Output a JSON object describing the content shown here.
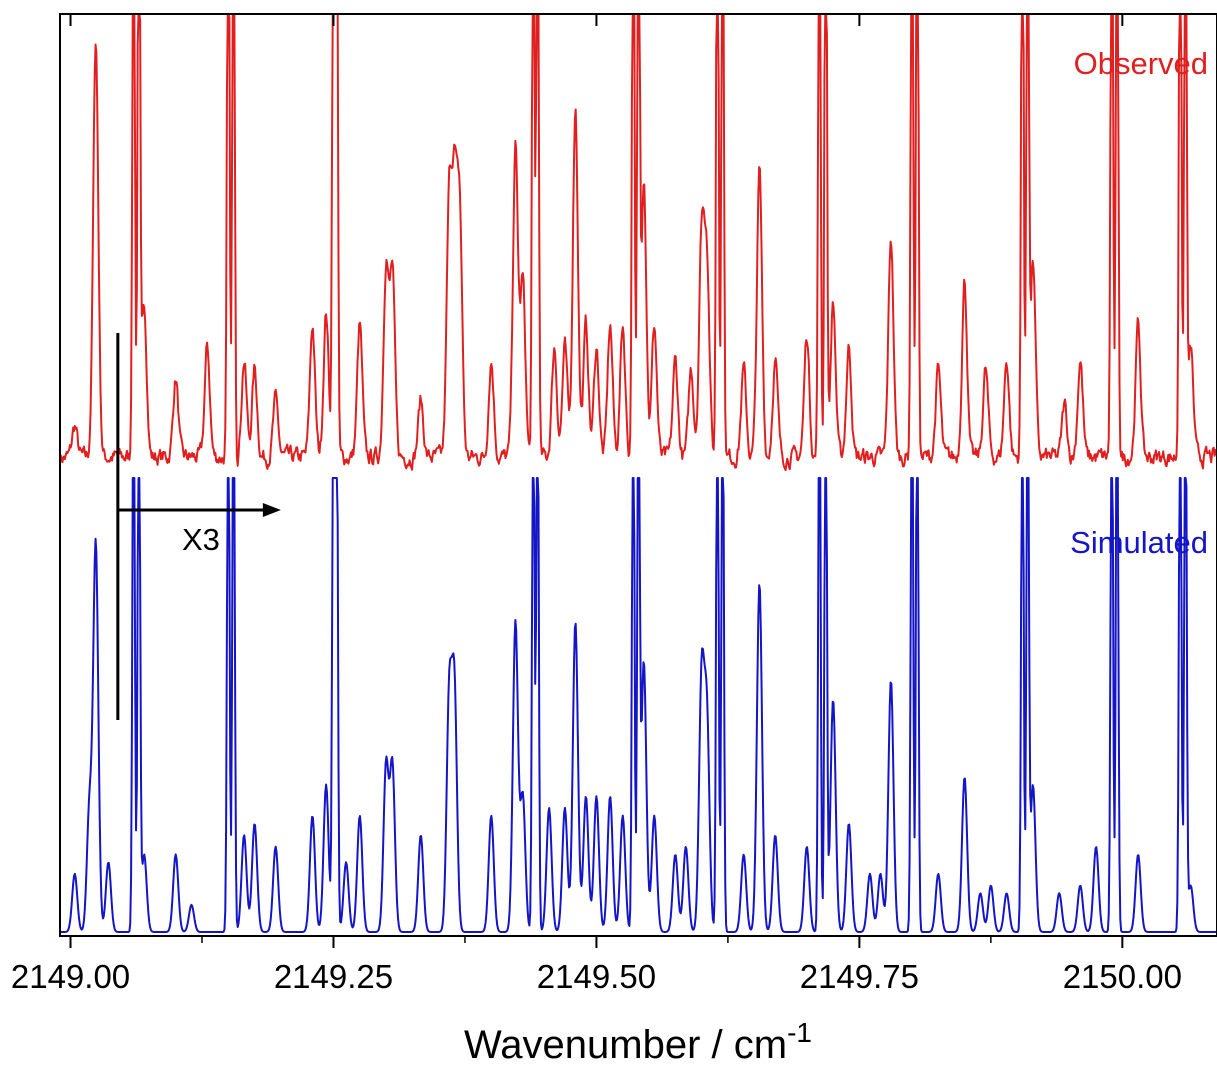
{
  "chart_data": {
    "type": "line",
    "title": "",
    "xlabel": "Wavenumber / cm",
    "xlabel_superscript": "-1",
    "ylabel": "",
    "xlim": [
      2148.99,
      2150.09
    ],
    "xticks": [
      2149.0,
      2149.25,
      2149.5,
      2149.75,
      2150.0
    ],
    "xtick_labels": [
      "2149.00",
      "2149.25",
      "2149.50",
      "2149.75",
      "2150.00"
    ],
    "y_axis_shown": false,
    "grid": false,
    "legend": "none (series labelled in-plot, top-right)",
    "colors": {
      "observed": "#e02020",
      "simulated": "#1515c8",
      "axis": "#000000"
    },
    "annotation": {
      "text": "X3",
      "scale_start_x": 2149.045,
      "arrow_end_x": 2149.2
    },
    "series": [
      {
        "name": "Observed",
        "label_position": "top-right",
        "baseline": 0,
        "peaks": [
          [
            2149.024,
            0.95
          ],
          [
            2149.004,
            0.07
          ],
          [
            2149.06,
            1.6
          ],
          [
            2149.065,
            1.6
          ],
          [
            2149.07,
            0.35
          ],
          [
            2149.1,
            0.18
          ],
          [
            2149.13,
            0.25
          ],
          [
            2149.15,
            1.6
          ],
          [
            2149.155,
            1.6
          ],
          [
            2149.165,
            0.22
          ],
          [
            2149.175,
            0.2
          ],
          [
            2149.195,
            0.13
          ],
          [
            2149.23,
            0.3
          ],
          [
            2149.243,
            0.33
          ],
          [
            2149.25,
            1.6
          ],
          [
            2149.253,
            1.6
          ],
          [
            2149.275,
            0.3
          ],
          [
            2149.3,
            0.44
          ],
          [
            2149.306,
            0.42
          ],
          [
            2149.333,
            0.13
          ],
          [
            2149.36,
            0.57
          ],
          [
            2149.365,
            0.58
          ],
          [
            2149.37,
            0.55
          ],
          [
            2149.4,
            0.22
          ],
          [
            2149.423,
            0.7
          ],
          [
            2149.43,
            0.4
          ],
          [
            2149.44,
            1.6
          ],
          [
            2149.444,
            1.6
          ],
          [
            2149.46,
            0.25
          ],
          [
            2149.47,
            0.25
          ],
          [
            2149.48,
            0.8
          ],
          [
            2149.49,
            0.3
          ],
          [
            2149.5,
            0.25
          ],
          [
            2149.513,
            0.3
          ],
          [
            2149.525,
            0.3
          ],
          [
            2149.535,
            1.6
          ],
          [
            2149.54,
            1.6
          ],
          [
            2149.545,
            0.65
          ],
          [
            2149.555,
            0.3
          ],
          [
            2149.575,
            0.22
          ],
          [
            2149.59,
            0.2
          ],
          [
            2149.6,
            0.5
          ],
          [
            2149.605,
            0.45
          ],
          [
            2149.615,
            1.6
          ],
          [
            2149.62,
            1.6
          ],
          [
            2149.64,
            0.2
          ],
          [
            2149.655,
            0.65
          ],
          [
            2149.67,
            0.22
          ],
          [
            2149.7,
            0.28
          ],
          [
            2149.712,
            1.6
          ],
          [
            2149.718,
            1.6
          ],
          [
            2149.725,
            0.35
          ],
          [
            2149.74,
            0.25
          ],
          [
            2149.78,
            0.5
          ],
          [
            2149.8,
            1.6
          ],
          [
            2149.805,
            1.6
          ],
          [
            2149.825,
            0.2
          ],
          [
            2149.85,
            0.4
          ],
          [
            2149.87,
            0.2
          ],
          [
            2149.89,
            0.22
          ],
          [
            2149.905,
            1.6
          ],
          [
            2149.91,
            1.6
          ],
          [
            2149.915,
            0.45
          ],
          [
            2149.945,
            0.12
          ],
          [
            2149.96,
            0.22
          ],
          [
            2149.99,
            1.6
          ],
          [
            2149.995,
            1.6
          ],
          [
            2150.015,
            0.3
          ],
          [
            2150.055,
            1.6
          ],
          [
            2150.06,
            1.6
          ],
          [
            2150.065,
            0.25
          ]
        ]
      },
      {
        "name": "Simulated",
        "label_position": "right",
        "baseline": 0,
        "peaks": [
          [
            2149.004,
            0.15
          ],
          [
            2149.018,
            0.32
          ],
          [
            2149.024,
            1.0
          ],
          [
            2149.036,
            0.18
          ],
          [
            2149.06,
            1.6
          ],
          [
            2149.065,
            1.6
          ],
          [
            2149.07,
            0.2
          ],
          [
            2149.1,
            0.2
          ],
          [
            2149.115,
            0.07
          ],
          [
            2149.15,
            1.6
          ],
          [
            2149.155,
            1.6
          ],
          [
            2149.165,
            0.25
          ],
          [
            2149.175,
            0.28
          ],
          [
            2149.195,
            0.22
          ],
          [
            2149.23,
            0.3
          ],
          [
            2149.243,
            0.38
          ],
          [
            2149.25,
            1.6
          ],
          [
            2149.253,
            1.6
          ],
          [
            2149.262,
            0.18
          ],
          [
            2149.275,
            0.3
          ],
          [
            2149.3,
            0.43
          ],
          [
            2149.306,
            0.43
          ],
          [
            2149.333,
            0.25
          ],
          [
            2149.36,
            0.6
          ],
          [
            2149.365,
            0.62
          ],
          [
            2149.4,
            0.3
          ],
          [
            2149.423,
            0.8
          ],
          [
            2149.43,
            0.35
          ],
          [
            2149.44,
            1.6
          ],
          [
            2149.444,
            1.6
          ],
          [
            2149.455,
            0.32
          ],
          [
            2149.47,
            0.32
          ],
          [
            2149.48,
            0.8
          ],
          [
            2149.49,
            0.35
          ],
          [
            2149.5,
            0.35
          ],
          [
            2149.513,
            0.35
          ],
          [
            2149.525,
            0.3
          ],
          [
            2149.535,
            1.6
          ],
          [
            2149.54,
            1.6
          ],
          [
            2149.545,
            0.7
          ],
          [
            2149.555,
            0.3
          ],
          [
            2149.575,
            0.2
          ],
          [
            2149.585,
            0.22
          ],
          [
            2149.6,
            0.65
          ],
          [
            2149.605,
            0.55
          ],
          [
            2149.615,
            1.6
          ],
          [
            2149.62,
            1.6
          ],
          [
            2149.64,
            0.2
          ],
          [
            2149.655,
            0.9
          ],
          [
            2149.67,
            0.25
          ],
          [
            2149.7,
            0.22
          ],
          [
            2149.712,
            1.6
          ],
          [
            2149.718,
            1.6
          ],
          [
            2149.725,
            0.6
          ],
          [
            2149.74,
            0.28
          ],
          [
            2149.76,
            0.15
          ],
          [
            2149.77,
            0.15
          ],
          [
            2149.78,
            0.65
          ],
          [
            2149.8,
            1.6
          ],
          [
            2149.805,
            1.6
          ],
          [
            2149.825,
            0.15
          ],
          [
            2149.85,
            0.4
          ],
          [
            2149.865,
            0.1
          ],
          [
            2149.875,
            0.12
          ],
          [
            2149.89,
            0.1
          ],
          [
            2149.905,
            1.6
          ],
          [
            2149.91,
            1.6
          ],
          [
            2149.915,
            0.38
          ],
          [
            2149.94,
            0.1
          ],
          [
            2149.96,
            0.12
          ],
          [
            2149.975,
            0.22
          ],
          [
            2149.99,
            1.6
          ],
          [
            2149.995,
            1.6
          ],
          [
            2150.015,
            0.2
          ],
          [
            2150.055,
            1.6
          ],
          [
            2150.06,
            1.6
          ],
          [
            2150.065,
            0.12
          ]
        ]
      }
    ]
  }
}
